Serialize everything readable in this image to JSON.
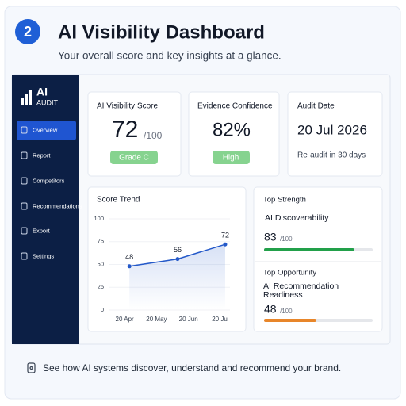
{
  "header": {
    "step": "2",
    "title": "AI Visibility Dashboard",
    "subtitle": "Your overall score and key insights at a glance."
  },
  "sidebar": {
    "logo_top": "AI",
    "logo_bottom": "AUDIT",
    "items": [
      "Overview",
      "Report",
      "Competitors",
      "Recommendations",
      "Export",
      "Settings"
    ]
  },
  "cards": [
    {
      "title": "AI Visibility Score",
      "value": "72",
      "suffix": "/100",
      "badge": "Grade C"
    },
    {
      "title": "Evidence Confidence",
      "value": "82%",
      "badge": "High"
    },
    {
      "title": "Audit Date",
      "value": "20 Jul 2026",
      "note": "Re-audit in 30 days"
    }
  ],
  "chart_data": {
    "type": "line",
    "title": "Score Trend",
    "x": [
      0.15,
      1.66,
      3.15
    ],
    "values": [
      48,
      56,
      72
    ],
    "color": "#2459c9",
    "xlim": [
      -0.5,
      3.3
    ],
    "xticks": [
      {
        "value": 0,
        "label": "20 Apr"
      },
      {
        "value": 1,
        "label": "20 May"
      },
      {
        "value": 2,
        "label": "20 Jun"
      },
      {
        "value": 3,
        "label": "20 Jul"
      }
    ],
    "ylim": [
      0,
      100
    ],
    "yticks": [
      0,
      25,
      50,
      75,
      100
    ]
  },
  "strength": {
    "title": "Top Strength",
    "name": "AI Discoverability",
    "score": 83,
    "max": {
      "value": 100,
      "label": "/100"
    },
    "color": "#22a04a"
  },
  "opportunity": {
    "title": "Top Opportunity",
    "name": "AI Recommendation Readiness",
    "score": 48,
    "max": {
      "value": 100,
      "label": "/100"
    },
    "color": "#e8862a"
  },
  "footer": {
    "text": "See how AI systems discover, understand and recommend your brand."
  }
}
